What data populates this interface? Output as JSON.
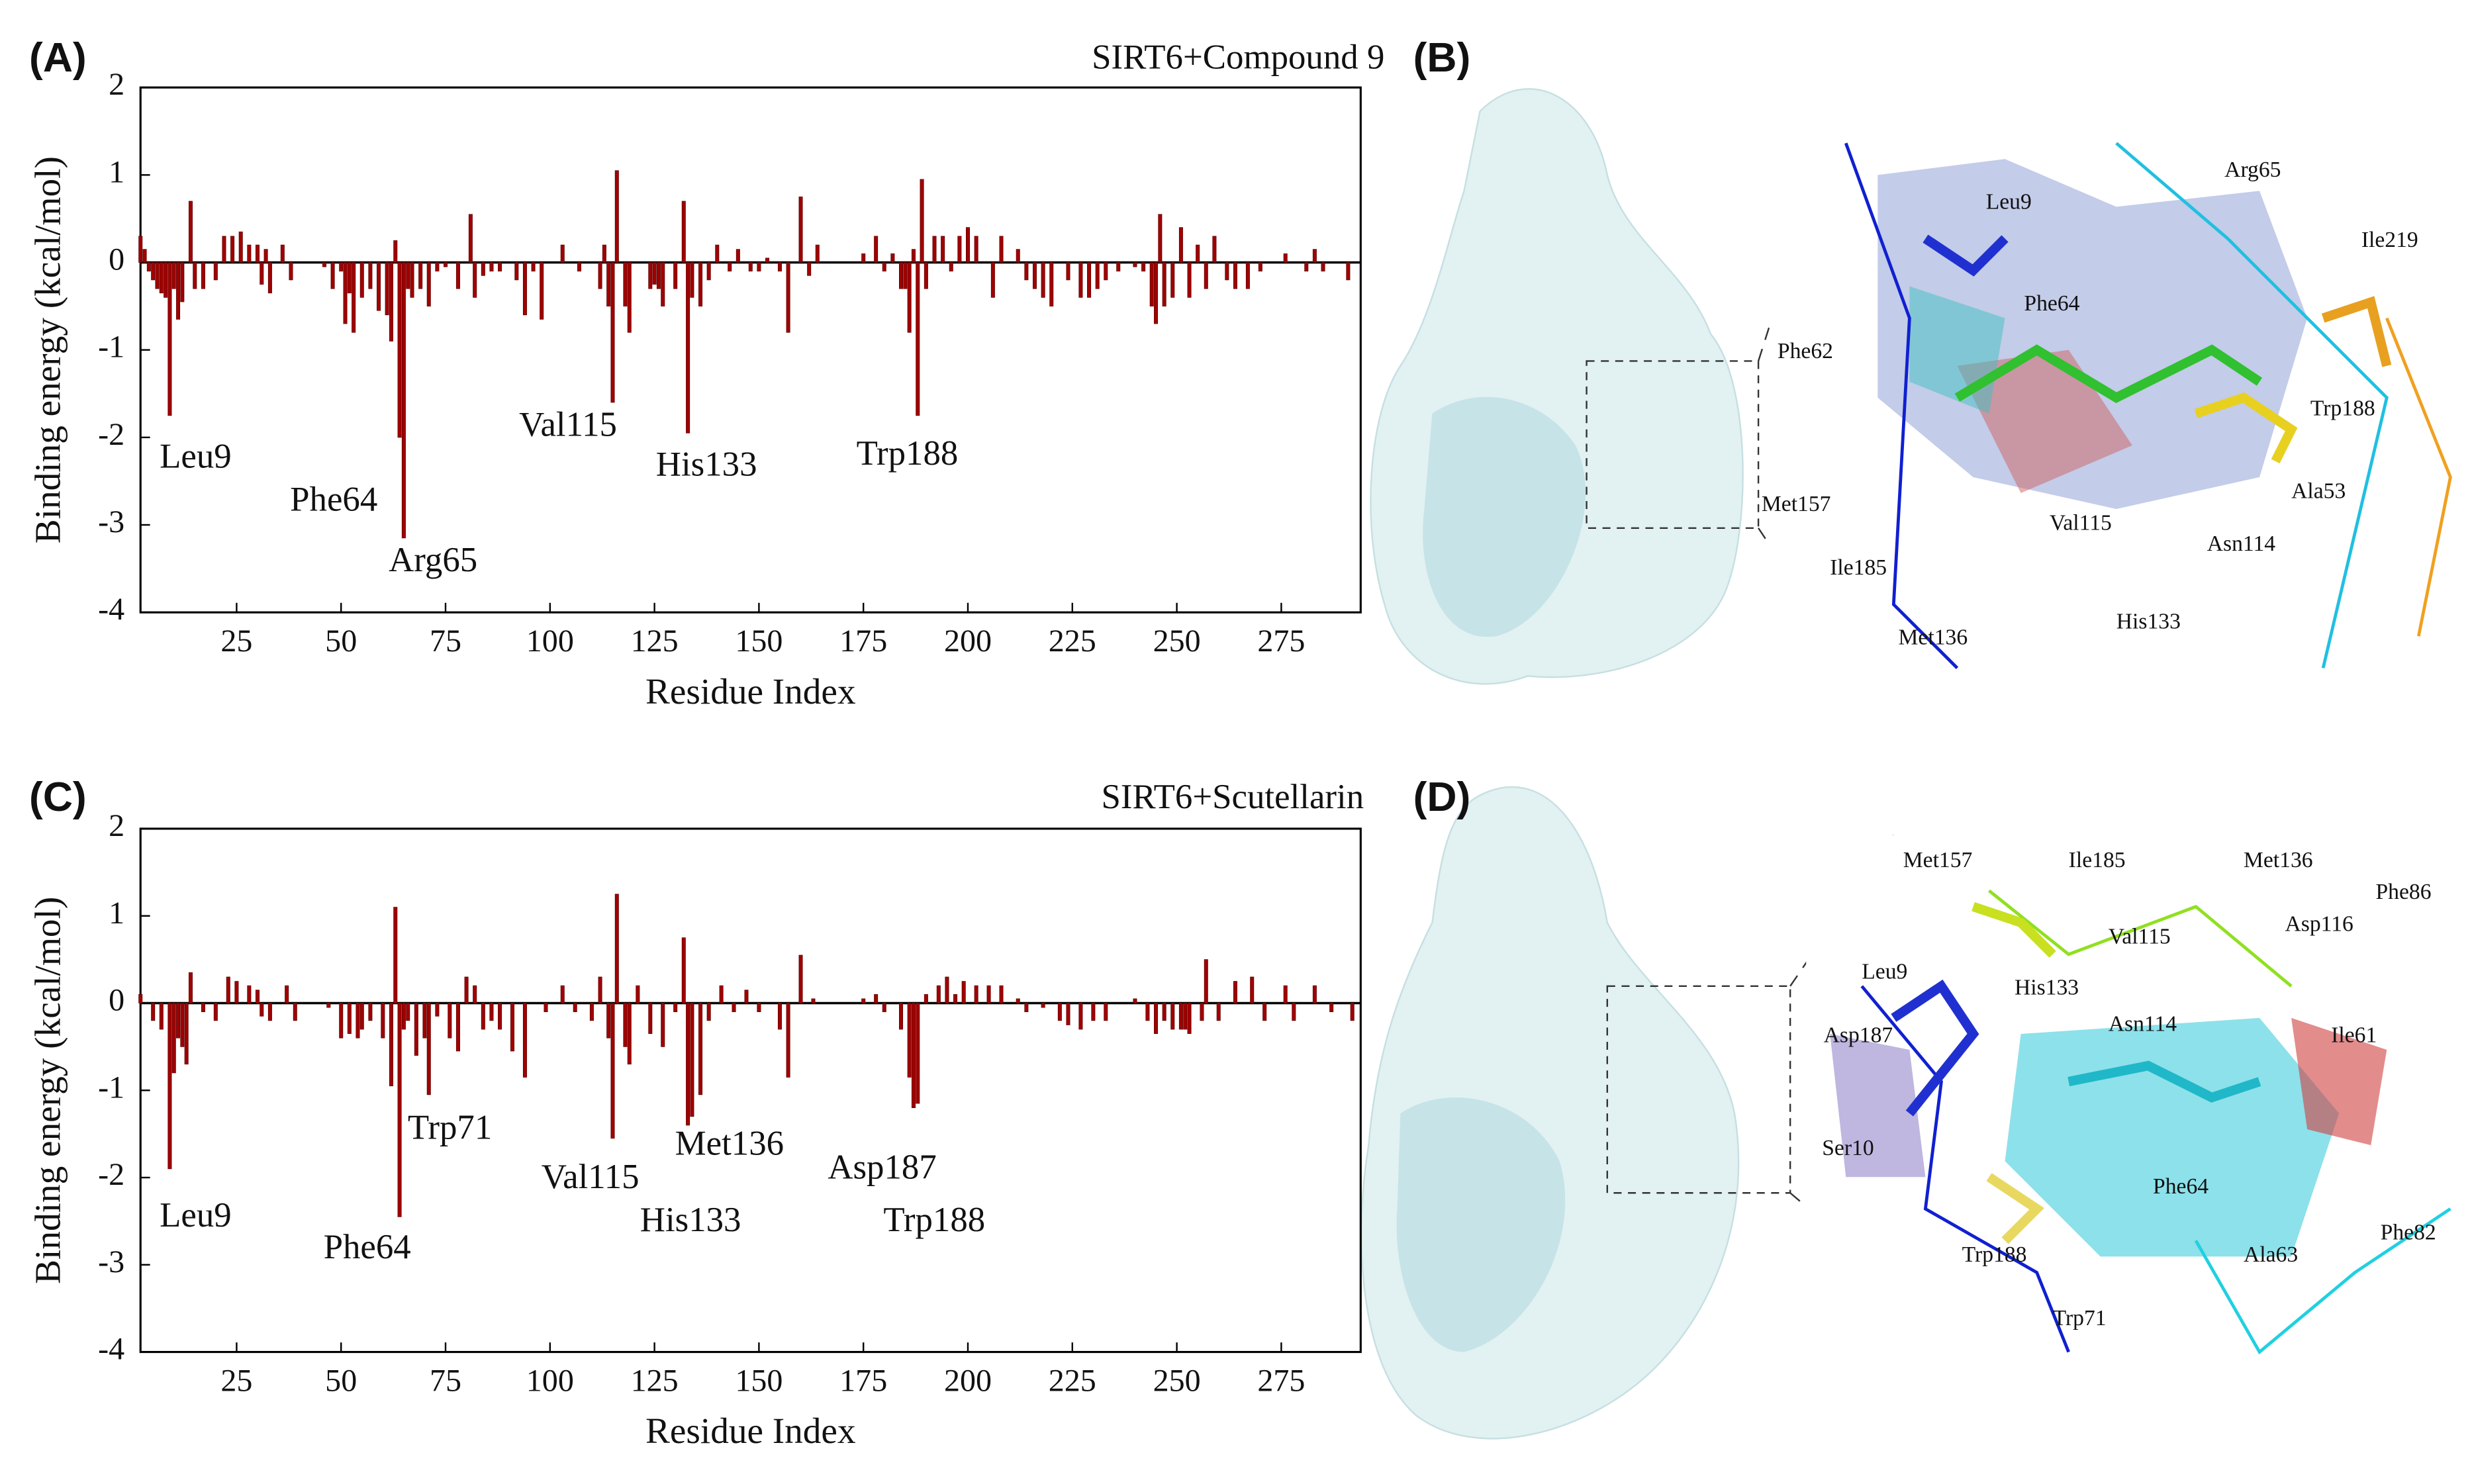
{
  "chart_data": [
    {
      "type": "bar",
      "label": "(A)",
      "title": "SIRT6+Compound 9",
      "x_label": "Residue Index",
      "y_label": "Binding energy (kcal/mol)",
      "color": "#a00000",
      "x": [
        2,
        3,
        4,
        5,
        6,
        7,
        8,
        9,
        10,
        11,
        12,
        14,
        15,
        17,
        20,
        22,
        24,
        26,
        28,
        30,
        31,
        32,
        33,
        36,
        38,
        46,
        48,
        50,
        51,
        52,
        53,
        55,
        57,
        59,
        61,
        62,
        63,
        64,
        65,
        66,
        67,
        69,
        71,
        73,
        75,
        78,
        81,
        82,
        84,
        86,
        88,
        92,
        94,
        96,
        98,
        103,
        107,
        112,
        113,
        114,
        115,
        116,
        118,
        119,
        124,
        125,
        126,
        127,
        130,
        132,
        133,
        134,
        136,
        138,
        140,
        143,
        145,
        148,
        150,
        152,
        155,
        157,
        160,
        162,
        164,
        175,
        178,
        180,
        182,
        184,
        185,
        186,
        187,
        188,
        189,
        190,
        192,
        194,
        196,
        198,
        200,
        202,
        206,
        208,
        212,
        214,
        216,
        218,
        220,
        224,
        227,
        229,
        231,
        233,
        236,
        240,
        242,
        244,
        245,
        246,
        247,
        249,
        251,
        253,
        255,
        257,
        259,
        262,
        264,
        267,
        270,
        276,
        281,
        283,
        285,
        291
      ],
      "values": [
        0.3,
        0.15,
        -0.1,
        -0.2,
        -0.3,
        -0.35,
        -0.4,
        -1.75,
        -0.3,
        -0.65,
        -0.45,
        0.7,
        -0.3,
        -0.3,
        -0.2,
        0.3,
        0.3,
        0.35,
        0.2,
        0.2,
        -0.25,
        0.15,
        -0.35,
        0.2,
        -0.2,
        -0.05,
        -0.3,
        -0.1,
        -0.7,
        -0.35,
        -0.8,
        -0.4,
        -0.3,
        -0.55,
        -0.6,
        -0.9,
        0.25,
        -2.0,
        -3.15,
        -0.3,
        -0.4,
        -0.3,
        -0.5,
        -0.1,
        -0.05,
        -0.3,
        0.55,
        -0.4,
        -0.15,
        -0.1,
        -0.1,
        -0.2,
        -0.6,
        -0.1,
        -0.65,
        0.2,
        -0.1,
        -0.3,
        0.2,
        -0.5,
        -1.6,
        1.05,
        -0.5,
        -0.8,
        -0.3,
        -0.25,
        -0.3,
        -0.5,
        -0.3,
        0.7,
        -1.95,
        -0.4,
        -0.5,
        -0.2,
        0.2,
        -0.1,
        0.15,
        -0.1,
        -0.1,
        0.05,
        -0.1,
        -0.8,
        0.75,
        -0.15,
        0.2,
        0.1,
        0.3,
        -0.1,
        0.1,
        -0.3,
        -0.3,
        -0.8,
        0.15,
        -1.75,
        0.95,
        -0.3,
        0.3,
        0.3,
        -0.1,
        0.3,
        0.4,
        0.3,
        -0.4,
        0.3,
        0.15,
        -0.2,
        -0.3,
        -0.4,
        -0.5,
        -0.2,
        -0.4,
        -0.4,
        -0.3,
        -0.2,
        -0.1,
        -0.05,
        -0.1,
        -0.5,
        -0.7,
        0.55,
        -0.5,
        -0.4,
        0.4,
        -0.4,
        0.2,
        -0.3,
        0.3,
        -0.2,
        -0.3,
        -0.3,
        -0.1,
        0.1,
        -0.1,
        0.15,
        -0.1,
        -0.2
      ],
      "xlim": [
        2,
        294
      ],
      "ylim": [
        -4,
        2
      ],
      "xticks": [
        25,
        50,
        75,
        100,
        125,
        150,
        175,
        200,
        225,
        250,
        275
      ],
      "yticks": [
        -4,
        -3,
        -2,
        -1,
        0,
        1,
        2
      ],
      "annotations": [
        "Leu9",
        "Phe64",
        "Arg65",
        "Val115",
        "His133",
        "Trp188"
      ]
    },
    {
      "type": "bar",
      "label": "(C)",
      "title": "SIRT6+Scutellarin",
      "x_label": "Residue Index",
      "y_label": "Binding energy (kcal/mol)",
      "color": "#a00000",
      "x": [
        2,
        5,
        7,
        9,
        10,
        11,
        12,
        13,
        14,
        17,
        20,
        23,
        25,
        28,
        30,
        31,
        33,
        37,
        39,
        47,
        50,
        52,
        54,
        55,
        57,
        60,
        62,
        63,
        64,
        65,
        66,
        68,
        70,
        71,
        73,
        76,
        78,
        80,
        82,
        84,
        86,
        88,
        91,
        94,
        99,
        103,
        106,
        110,
        112,
        114,
        115,
        116,
        118,
        119,
        121,
        124,
        127,
        130,
        132,
        133,
        134,
        136,
        138,
        141,
        144,
        147,
        150,
        155,
        157,
        160,
        163,
        175,
        178,
        180,
        184,
        186,
        187,
        188,
        190,
        193,
        195,
        197,
        199,
        202,
        205,
        208,
        212,
        214,
        218,
        222,
        224,
        227,
        230,
        233,
        240,
        243,
        245,
        247,
        249,
        251,
        252,
        253,
        256,
        257,
        260,
        264,
        268,
        271,
        276,
        278,
        283,
        287,
        292
      ],
      "values": [
        0.1,
        -0.2,
        -0.3,
        -1.9,
        -0.8,
        -0.4,
        -0.5,
        -0.7,
        0.35,
        -0.1,
        -0.2,
        0.3,
        0.25,
        0.2,
        0.15,
        -0.15,
        -0.2,
        0.2,
        -0.2,
        -0.05,
        -0.4,
        -0.35,
        -0.4,
        -0.3,
        -0.2,
        -0.4,
        -0.95,
        1.1,
        -2.45,
        -0.3,
        -0.2,
        -0.6,
        -0.4,
        -1.05,
        -0.15,
        -0.4,
        -0.55,
        0.3,
        0.2,
        -0.3,
        -0.2,
        -0.3,
        -0.55,
        -0.85,
        -0.1,
        0.2,
        -0.1,
        -0.2,
        0.3,
        -0.4,
        -1.55,
        1.25,
        -0.5,
        -0.7,
        0.2,
        -0.35,
        -0.5,
        -0.1,
        0.75,
        -1.4,
        -1.3,
        -1.05,
        -0.2,
        0.2,
        -0.1,
        0.15,
        -0.1,
        -0.3,
        -0.85,
        0.55,
        0.05,
        0.05,
        0.1,
        -0.1,
        -0.3,
        -0.85,
        -1.2,
        -1.15,
        0.1,
        0.2,
        0.3,
        0.1,
        0.25,
        0.2,
        0.2,
        0.2,
        0.05,
        -0.1,
        -0.05,
        -0.2,
        -0.25,
        -0.3,
        -0.2,
        -0.2,
        0.05,
        -0.2,
        -0.35,
        -0.2,
        -0.3,
        -0.3,
        -0.3,
        -0.35,
        -0.2,
        0.5,
        -0.2,
        0.25,
        0.3,
        -0.2,
        0.2,
        -0.2,
        0.2,
        -0.1,
        -0.2
      ],
      "xlim": [
        2,
        294
      ],
      "ylim": [
        -4,
        2
      ],
      "xticks": [
        25,
        50,
        75,
        100,
        125,
        150,
        175,
        200,
        225,
        250,
        275
      ],
      "yticks": [
        -4,
        -3,
        -2,
        -1,
        0,
        1,
        2
      ],
      "annotations": [
        "Leu9",
        "Phe64",
        "Trp71",
        "Val115",
        "His133",
        "Met136",
        "Asp187",
        "Trp188"
      ]
    }
  ],
  "structures": [
    {
      "label": "(B)",
      "residues": [
        "Leu9",
        "Arg65",
        "Ile219",
        "Phe64",
        "Phe62",
        "Trp188",
        "Met157",
        "Ala53",
        "Val115",
        "Asn114",
        "Ile185",
        "His133",
        "Met136"
      ]
    },
    {
      "label": "(D)",
      "residues": [
        "Met157",
        "Ile185",
        "Met136",
        "Phe86",
        "Asp116",
        "Val115",
        "His133",
        "Leu9",
        "Asn114",
        "Asp187",
        "Ile61",
        "Ser10",
        "Phe64",
        "Phe82",
        "Ala63",
        "Trp188",
        "Trp71"
      ]
    }
  ]
}
